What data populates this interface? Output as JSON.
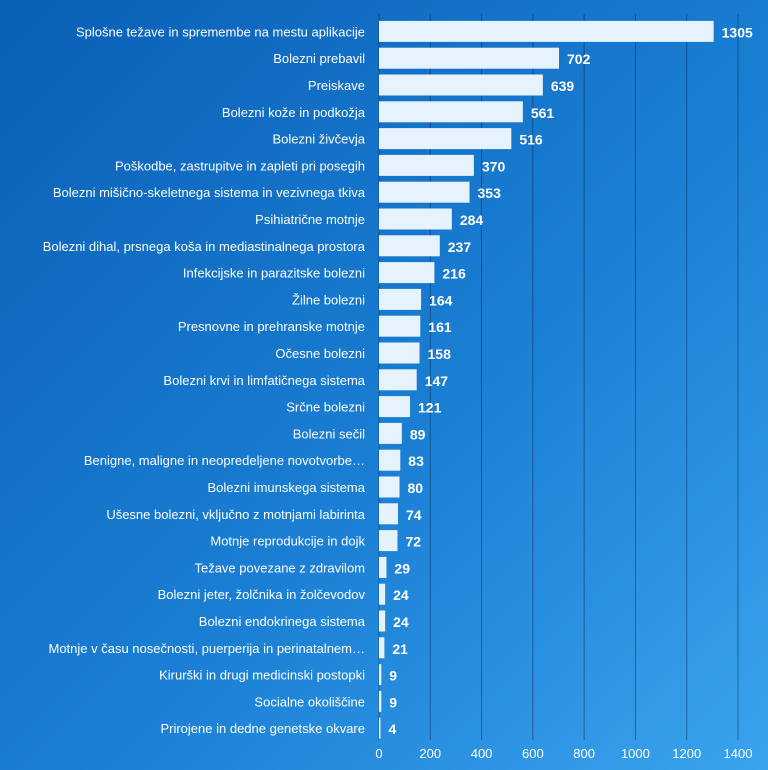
{
  "chart_data": {
    "type": "bar",
    "orientation": "horizontal",
    "title": "",
    "xlabel": "",
    "ylabel": "",
    "xlim": [
      0,
      1400
    ],
    "xticks": [
      0,
      200,
      400,
      600,
      800,
      1000,
      1200,
      1400
    ],
    "grid": true,
    "legend": "none",
    "colors": {
      "bar": "#e6f2fc",
      "text": "#ffffff",
      "grid": "#0a1e3c"
    },
    "categories": [
      "Splošne težave in spremembe na mestu aplikacije",
      "Bolezni prebavil",
      "Preiskave",
      "Bolezni kože in podkožja",
      "Bolezni živčevja",
      "Poškodbe, zastrupitve in zapleti pri posegih",
      "Bolezni mišično-skeletnega sistema in vezivnega tkiva",
      "Psihiatrične motnje",
      "Bolezni dihal, prsnega koša in mediastinalnega prostora",
      "Infekcijske in parazitske bolezni",
      "Žilne bolezni",
      "Presnovne in prehranske motnje",
      "Očesne bolezni",
      "Bolezni krvi in limfatičnega sistema",
      "Srčne bolezni",
      "Bolezni sečil",
      "Benigne, maligne in neopredeljene novotvorbe…",
      "Bolezni imunskega sistema",
      "Ušesne bolezni, vključno z motnjami labirinta",
      "Motnje reprodukcije in dojk",
      "Težave povezane z zdravilom",
      "Bolezni jeter, žolčnika in žolčevodov",
      "Bolezni endokrinega sistema",
      "Motnje v času nosečnosti, puerperija in perinatalnem…",
      "Kirurški in drugi medicinski postopki",
      "Socialne okoliščine",
      "Prirojene in dedne genetske okvare"
    ],
    "values": [
      1305,
      702,
      639,
      561,
      516,
      370,
      353,
      284,
      237,
      216,
      164,
      161,
      158,
      147,
      121,
      89,
      83,
      80,
      74,
      72,
      29,
      24,
      24,
      21,
      9,
      9,
      4
    ]
  }
}
